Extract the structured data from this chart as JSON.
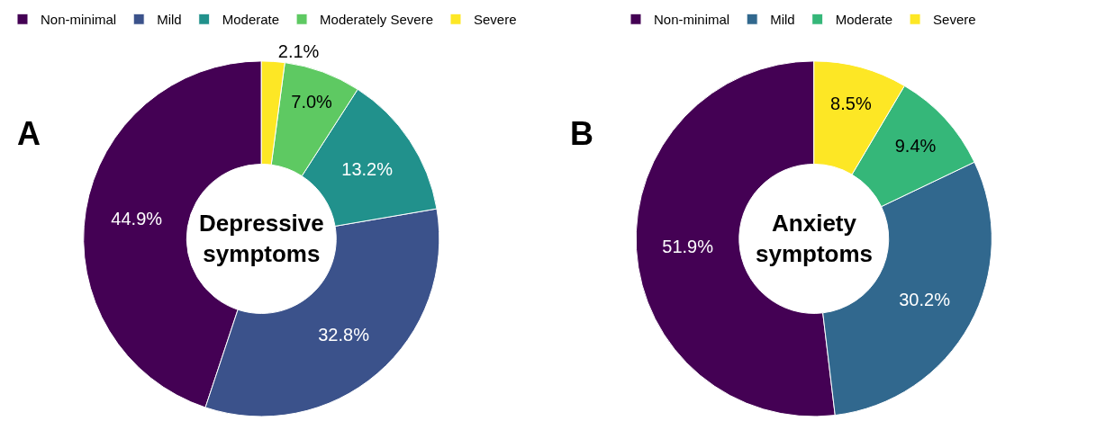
{
  "chart_data": [
    {
      "type": "donut",
      "title": "Depressive symptoms",
      "annotations": [
        "A"
      ],
      "categories": [
        "Non-minimal",
        "Mild",
        "Moderate",
        "Moderately Severe",
        "Severe"
      ],
      "values": [
        44.9,
        32.8,
        13.2,
        7.0,
        2.1
      ],
      "colors": [
        "#440154",
        "#3b528b",
        "#21918c",
        "#5ec962",
        "#fde725"
      ],
      "value_labels": [
        "44.9%",
        "32.8%",
        "13.2%",
        "7.0%",
        "2.1%"
      ],
      "legend": "top"
    },
    {
      "type": "donut",
      "title": "Anxiety symptoms",
      "annotations": [
        "B"
      ],
      "categories": [
        "Non-minimal",
        "Mild",
        "Moderate",
        "Severe"
      ],
      "values": [
        51.9,
        30.2,
        9.4,
        8.5
      ],
      "colors": [
        "#440154",
        "#31688e",
        "#35b779",
        "#fde725"
      ],
      "value_labels": [
        "51.9%",
        "30.2%",
        "9.4%",
        "8.5%"
      ],
      "legend": "top"
    }
  ]
}
